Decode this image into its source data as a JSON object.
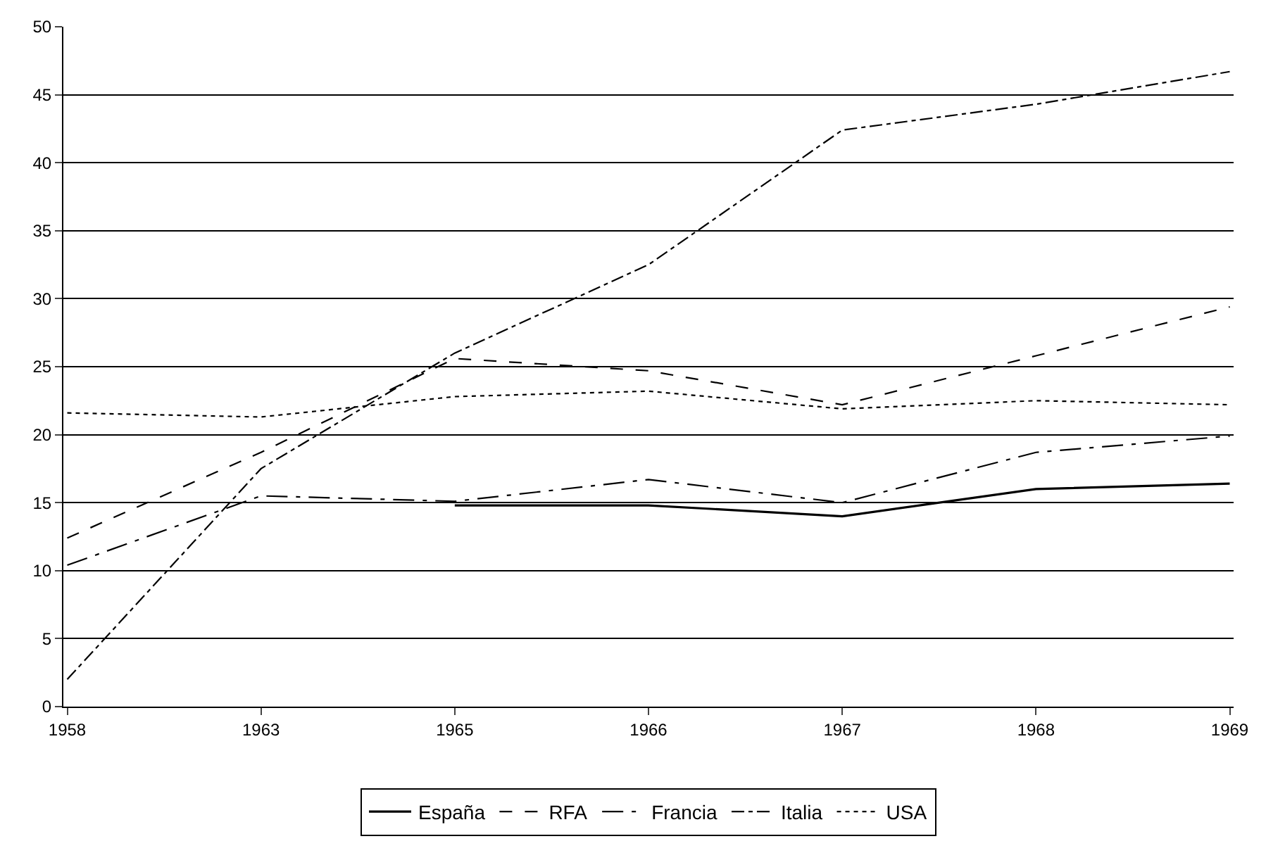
{
  "chart_data": {
    "type": "line",
    "categories": [
      "1958",
      "1963",
      "1965",
      "1966",
      "1967",
      "1968",
      "1969"
    ],
    "series": [
      {
        "name": "España",
        "color": "#000000",
        "line_style": "solid",
        "values": [
          null,
          null,
          14.8,
          14.8,
          14.0,
          16.0,
          16.4
        ]
      },
      {
        "name": "RFA",
        "color": "#000000",
        "line_style": "dashed",
        "values": [
          12.4,
          18.7,
          25.6,
          24.7,
          22.2,
          25.8,
          29.4
        ]
      },
      {
        "name": "Francia",
        "color": "#000000",
        "line_style": "longdashdot",
        "values": [
          10.4,
          15.5,
          15.1,
          16.7,
          15.0,
          18.7,
          19.9
        ]
      },
      {
        "name": "Italia",
        "color": "#000000",
        "line_style": "dashdot",
        "values": [
          2.0,
          17.5,
          26.0,
          32.5,
          42.4,
          44.3,
          46.7
        ]
      },
      {
        "name": "USA",
        "color": "#000000",
        "line_style": "dotted",
        "values": [
          21.6,
          21.3,
          22.8,
          23.2,
          21.9,
          22.5,
          22.2
        ]
      }
    ],
    "ylim": [
      0,
      50
    ],
    "yticks": [
      0,
      5,
      10,
      15,
      20,
      25,
      30,
      35,
      40,
      45,
      50
    ],
    "grid": "y",
    "legend": "bottom",
    "marker": "none"
  }
}
